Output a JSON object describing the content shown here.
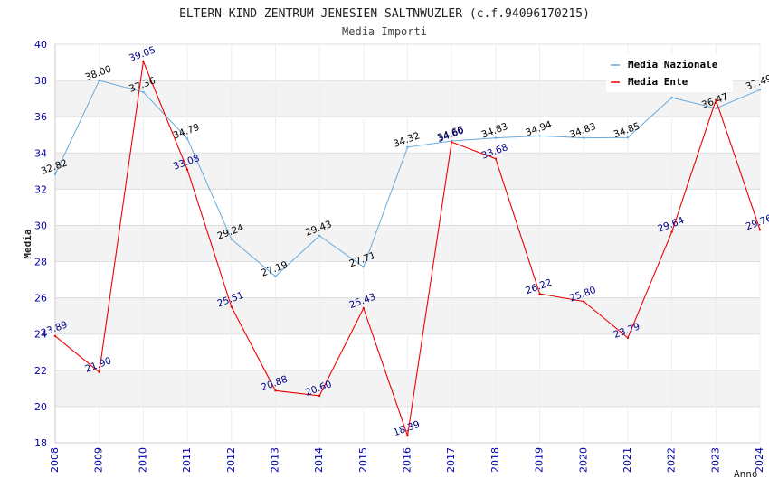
{
  "chart_data": {
    "type": "line",
    "title": "ELTERN KIND ZENTRUM JENESIEN SALTNWUZLER (c.f.94096170215)",
    "subtitle": "Media Importi",
    "xlabel": "Anno",
    "ylabel": "Media",
    "ylim": [
      18,
      40
    ],
    "y_ticks": [
      "18",
      "20",
      "22",
      "24",
      "26",
      "28",
      "30",
      "32",
      "34",
      "36",
      "38",
      "40"
    ],
    "categories": [
      "2008",
      "2009",
      "2010",
      "2011",
      "2012",
      "2013",
      "2014",
      "2015",
      "2016",
      "2017",
      "2018",
      "2019",
      "2020",
      "2021",
      "2022",
      "2023",
      "2024"
    ],
    "grid": "horizontal bands",
    "legend_position": "top-right",
    "series": [
      {
        "name": "Media Nazionale",
        "color": "#66aadd",
        "label_color": "#000000",
        "values": [
          32.82,
          38.0,
          37.36,
          34.79,
          29.24,
          27.19,
          29.43,
          27.71,
          34.32,
          34.66,
          34.83,
          34.94,
          34.83,
          34.85,
          37.05,
          36.47,
          37.49
        ],
        "labels": [
          "32.82",
          "38.00",
          "37.36",
          "34.79",
          "29.24",
          "27.19",
          "29.43",
          "27.71",
          "34.32",
          "34.66",
          "34.83",
          "34.94",
          "34.83",
          "34.85",
          "",
          "36.47",
          "37.49"
        ]
      },
      {
        "name": "Media Ente",
        "color": "#ee0000",
        "label_color": "#000088",
        "values": [
          23.89,
          21.9,
          39.05,
          33.08,
          25.51,
          20.88,
          20.6,
          25.43,
          18.39,
          34.6,
          33.68,
          26.22,
          25.8,
          23.79,
          29.64,
          36.92,
          29.76
        ],
        "labels": [
          "23.89",
          "21.90",
          "39.05",
          "33.08",
          "25.51",
          "20.88",
          "20.60",
          "25.43",
          "18.39",
          "34.60",
          "33.68",
          "26.22",
          "25.80",
          "23.79",
          "29.64",
          "",
          "29.76"
        ]
      }
    ]
  },
  "colors": {
    "band": "#f3f3f3",
    "gridline": "#dddddd",
    "axis_tick_text": "#0000aa"
  }
}
